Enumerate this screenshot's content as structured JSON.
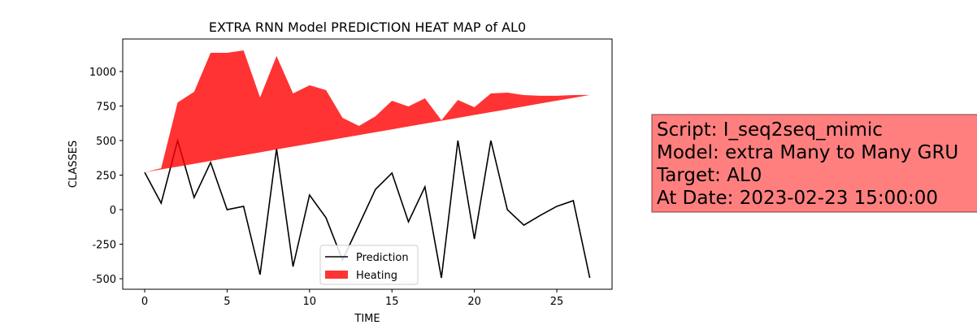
{
  "chart_data": {
    "type": "line",
    "title": "EXTRA RNN Model PREDICTION HEAT MAP of AL0",
    "x_label": "TIME",
    "y_label": "CLASSES",
    "x": [
      0,
      1,
      2,
      3,
      4,
      5,
      6,
      7,
      8,
      9,
      10,
      11,
      12,
      13,
      14,
      15,
      16,
      17,
      18,
      19,
      20,
      21,
      22,
      23,
      24,
      25,
      26,
      27
    ],
    "series": [
      {
        "name": "Prediction",
        "color": "#000000",
        "values": [
          270,
          47,
          500,
          88,
          341,
          0,
          24,
          -470,
          441,
          -412,
          106,
          -59,
          -365,
          -110,
          147,
          265,
          -88,
          165,
          -494,
          500,
          -212,
          500,
          0,
          -112,
          -41,
          24,
          65,
          -494
        ]
      },
      {
        "name": "Heating",
        "color": "#ff0000",
        "lower": [
          270,
          291,
          311,
          332,
          353,
          374,
          394,
          415,
          436,
          457,
          477,
          498,
          519,
          540,
          560,
          581,
          602,
          623,
          643,
          664,
          685,
          706,
          726,
          747,
          768,
          789,
          809,
          830
        ],
        "upper": [
          270,
          300,
          776,
          853,
          1135,
          1135,
          1153,
          812,
          1112,
          841,
          900,
          865,
          665,
          606,
          676,
          788,
          747,
          806,
          647,
          794,
          741,
          841,
          847,
          829,
          824,
          824,
          829,
          830
        ]
      }
    ],
    "xlim": [
      -1.33,
      28.35
    ],
    "ylim": [
      -576,
      1235
    ],
    "xticks": [
      0,
      5,
      10,
      15,
      20,
      25
    ],
    "yticks": [
      -500,
      -250,
      0,
      250,
      500,
      750,
      1000
    ],
    "legend": "lower center",
    "annotation": [
      "Script: I_seq2seq_mimic",
      "Model: extra Many to Many GRU",
      "Target: AL0",
      "At Date: 2023-02-23 15:00:00"
    ]
  }
}
